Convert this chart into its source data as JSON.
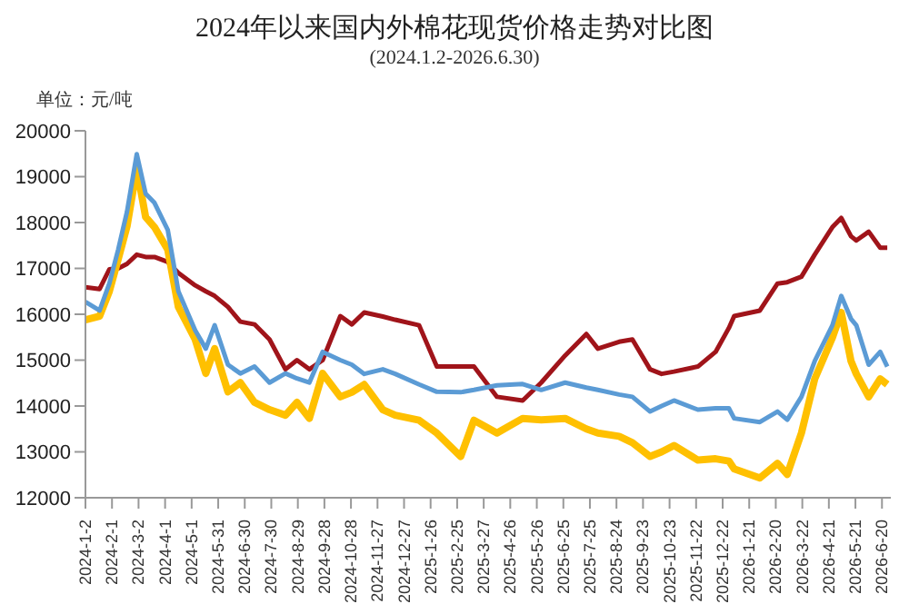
{
  "chart_data": {
    "type": "line",
    "title": "2024年以来国内外棉花现货价格走势对比图",
    "subtitle": "(2024.1.2-2026.6.30)",
    "ylabel": "单位：元/吨",
    "x": [
      "2024-01-02",
      "2024-01-18",
      "2024-01-29",
      "2024-02-08",
      "2024-02-18",
      "2024-02-29",
      "2024-03-10",
      "2024-03-20",
      "2024-04-04",
      "2024-04-16",
      "2024-05-05",
      "2024-05-17",
      "2024-05-27",
      "2024-06-11",
      "2024-06-25",
      "2024-07-11",
      "2024-07-28",
      "2024-08-15",
      "2024-08-28",
      "2024-09-11",
      "2024-09-26",
      "2024-10-16",
      "2024-10-29",
      "2024-11-12",
      "2024-12-03",
      "2024-12-17",
      "2025-01-13",
      "2025-02-02",
      "2025-03-01",
      "2025-03-16",
      "2025-04-11",
      "2025-05-10",
      "2025-05-31",
      "2025-06-27",
      "2025-07-21",
      "2025-08-03",
      "2025-08-27",
      "2025-09-11",
      "2025-10-01",
      "2025-10-14",
      "2025-10-28",
      "2025-11-24",
      "2025-12-14",
      "2025-12-29",
      "2026-01-04",
      "2026-02-02",
      "2026-02-22",
      "2026-03-05",
      "2026-03-21",
      "2026-04-05",
      "2026-04-25",
      "2026-05-05",
      "2026-05-16",
      "2026-05-22",
      "2026-06-05",
      "2026-06-18",
      "2026-06-26"
    ],
    "series": [
      {
        "color": "#a0141a",
        "values": [
          16590,
          16550,
          16980,
          17000,
          17100,
          17300,
          17250,
          17250,
          17140,
          16900,
          16630,
          16500,
          16400,
          16160,
          15840,
          15780,
          15450,
          14800,
          15000,
          14800,
          15000,
          15960,
          15780,
          16040,
          15950,
          15880,
          15760,
          14860,
          14860,
          14860,
          14200,
          14120,
          14510,
          15100,
          15570,
          15250,
          15400,
          15450,
          14800,
          14700,
          14750,
          14860,
          15180,
          15700,
          15960,
          16080,
          16670,
          16700,
          16820,
          17300,
          17900,
          18100,
          17700,
          17610,
          17800,
          17450,
          17450
        ]
      },
      {
        "color": "#ffc000",
        "values": [
          15880,
          15960,
          16500,
          17200,
          17920,
          19180,
          18120,
          17900,
          17410,
          16160,
          15450,
          14710,
          15250,
          14310,
          14510,
          14080,
          13920,
          13800,
          14080,
          13730,
          14710,
          14200,
          14300,
          14470,
          13920,
          13800,
          13690,
          13410,
          12900,
          13690,
          13410,
          13730,
          13700,
          13730,
          13500,
          13410,
          13340,
          13200,
          12900,
          13000,
          13140,
          12820,
          12850,
          12800,
          12630,
          12430,
          12750,
          12510,
          13410,
          14590,
          15490,
          16040,
          14980,
          14700,
          14200,
          14590,
          14470
        ]
      },
      {
        "color": "#5b9bd5",
        "values": [
          16270,
          16080,
          16670,
          17410,
          18240,
          19490,
          18630,
          18430,
          17840,
          16500,
          15650,
          15250,
          15760,
          14900,
          14710,
          14860,
          14510,
          14710,
          14600,
          14510,
          15180,
          15000,
          14900,
          14700,
          14800,
          14700,
          14470,
          14310,
          14300,
          14350,
          14450,
          14480,
          14350,
          14510,
          14400,
          14350,
          14250,
          14200,
          13880,
          14000,
          14120,
          13920,
          13950,
          13950,
          13730,
          13650,
          13880,
          13700,
          14200,
          14980,
          15760,
          16400,
          15900,
          15760,
          14900,
          15180,
          14860
        ]
      }
    ],
    "xlim": [
      "2024-01-02",
      "2026-06-30"
    ],
    "xticks": [
      {
        "value": "2024-01-02",
        "label": "2024-1-2"
      },
      {
        "value": "2024-02-01",
        "label": "2024-2-1"
      },
      {
        "value": "2024-03-02",
        "label": "2024-3-2"
      },
      {
        "value": "2024-04-01",
        "label": "2024-4-1"
      },
      {
        "value": "2024-05-01",
        "label": "2024-5-1"
      },
      {
        "value": "2024-05-31",
        "label": "2024-5-31"
      },
      {
        "value": "2024-06-30",
        "label": "2024-6-30"
      },
      {
        "value": "2024-07-30",
        "label": "2024-7-30"
      },
      {
        "value": "2024-08-29",
        "label": "2024-8-29"
      },
      {
        "value": "2024-09-28",
        "label": "2024-9-28"
      },
      {
        "value": "2024-10-28",
        "label": "2024-10-28"
      },
      {
        "value": "2024-11-27",
        "label": "2024-11-27"
      },
      {
        "value": "2024-12-27",
        "label": "2024-12-27"
      },
      {
        "value": "2025-01-26",
        "label": "2025-1-26"
      },
      {
        "value": "2025-02-25",
        "label": "2025-2-25"
      },
      {
        "value": "2025-03-27",
        "label": "2025-3-27"
      },
      {
        "value": "2025-04-26",
        "label": "2025-4-26"
      },
      {
        "value": "2025-05-26",
        "label": "2025-5-26"
      },
      {
        "value": "2025-06-25",
        "label": "2025-6-25"
      },
      {
        "value": "2025-07-25",
        "label": "2025-7-25"
      },
      {
        "value": "2025-08-24",
        "label": "2025-8-24"
      },
      {
        "value": "2025-09-23",
        "label": "2025-9-23"
      },
      {
        "value": "2025-10-23",
        "label": "2025-10-23"
      },
      {
        "value": "2025-11-22",
        "label": "2025-11-22"
      },
      {
        "value": "2025-12-22",
        "label": "2025-12-22"
      },
      {
        "value": "2026-01-21",
        "label": "2026-1-21"
      },
      {
        "value": "2026-02-20",
        "label": "2026-2-20"
      },
      {
        "value": "2026-03-22",
        "label": "2026-3-22"
      },
      {
        "value": "2026-04-21",
        "label": "2026-4-21"
      },
      {
        "value": "2026-05-21",
        "label": "2026-5-21"
      },
      {
        "value": "2026-06-20",
        "label": "2026-6-20"
      }
    ],
    "ylim": [
      12000,
      20000
    ],
    "yticks": [
      12000,
      13000,
      14000,
      15000,
      16000,
      17000,
      18000,
      19000,
      20000
    ],
    "grid": false,
    "legend": false,
    "marker": "none",
    "line_style": "solid"
  }
}
